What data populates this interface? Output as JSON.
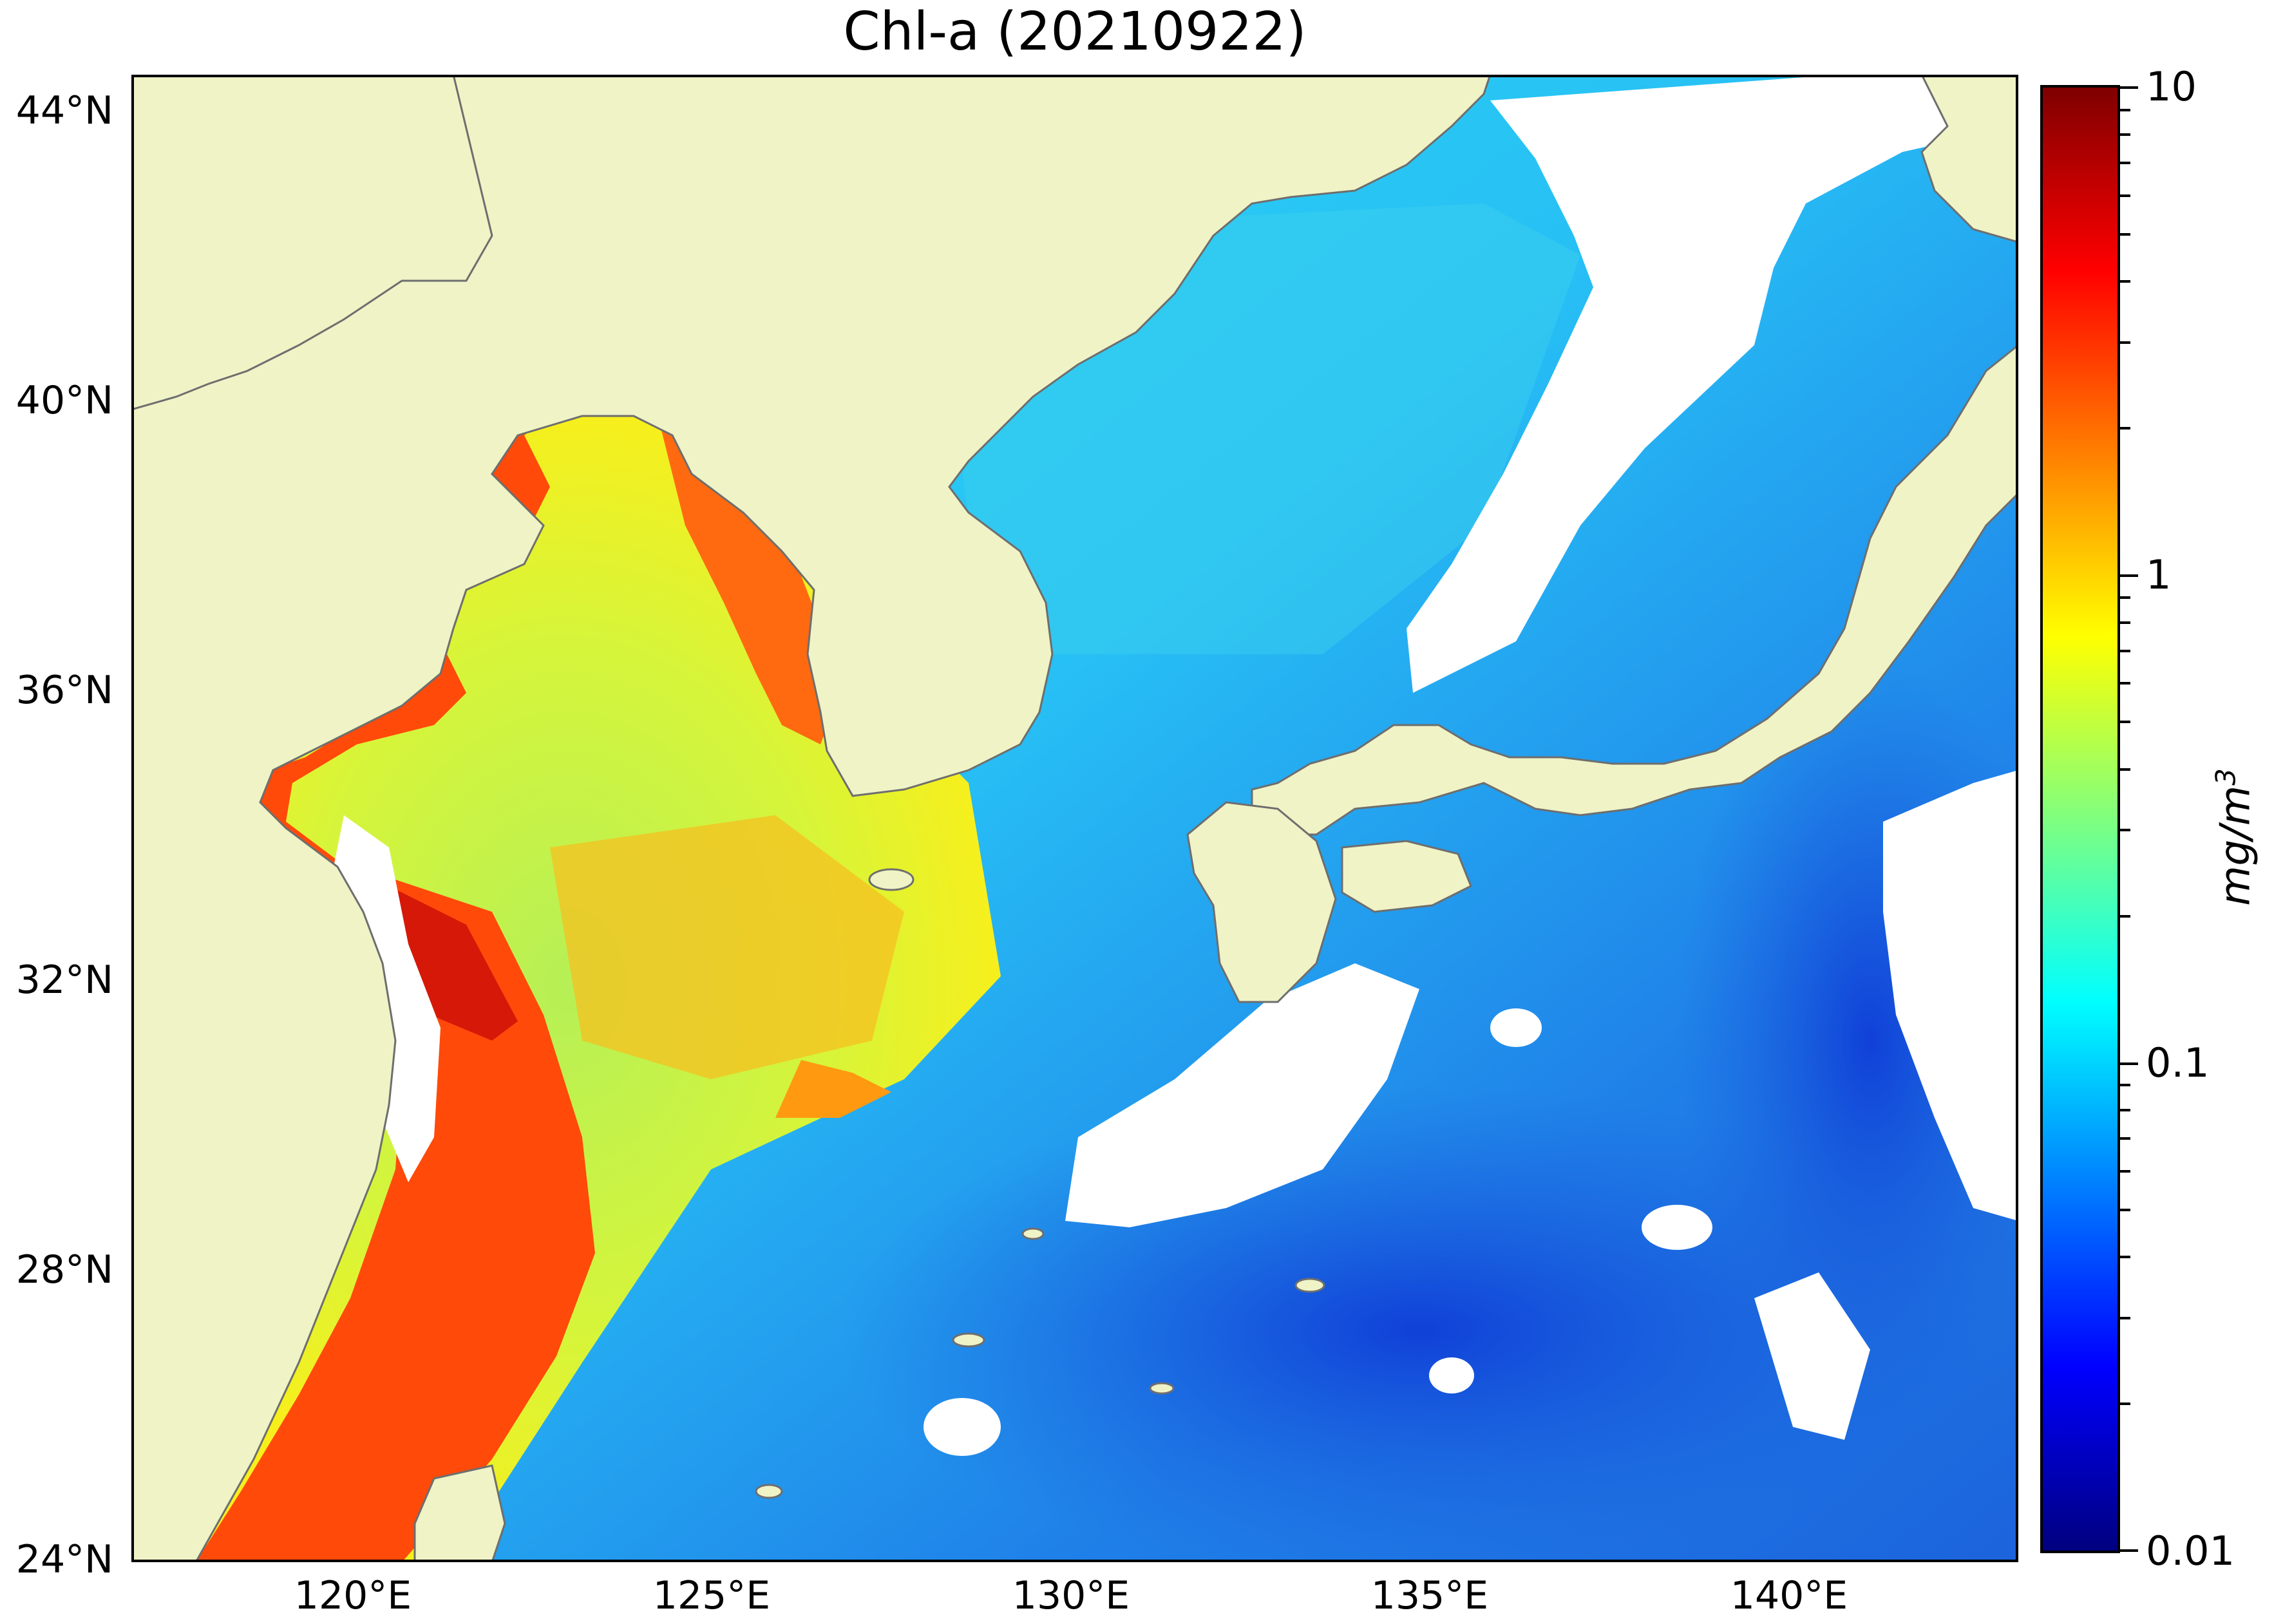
{
  "title": "Chl-a (20210922)",
  "map": {
    "projection": "equirectangular",
    "lon_range_deg_e": [
      116.5,
      143.0
    ],
    "lat_range_deg_n": [
      24.0,
      44.5
    ],
    "colors": {
      "land": "#eff3c6",
      "no_data_cloud": "#ffffff",
      "coastline": "#6e6e6e",
      "frame": "#000000"
    }
  },
  "axes": {
    "lat_labels": [
      "44°N",
      "40°N",
      "36°N",
      "32°N",
      "28°N",
      "24°N"
    ],
    "lat_values": [
      44,
      40,
      36,
      32,
      28,
      24
    ],
    "lon_labels": [
      "120°E",
      "125°E",
      "130°E",
      "135°E",
      "140°E"
    ],
    "lon_values": [
      120,
      125,
      130,
      135,
      140
    ]
  },
  "colorbar": {
    "scale": "log",
    "colormap": "jet",
    "range": [
      0.01,
      10
    ],
    "major_labels": [
      "10",
      "1",
      "0.1",
      "0.01"
    ],
    "major_values": [
      10,
      1,
      0.1,
      0.01
    ],
    "unit_main": "mg/m",
    "unit_exp": "3"
  }
}
